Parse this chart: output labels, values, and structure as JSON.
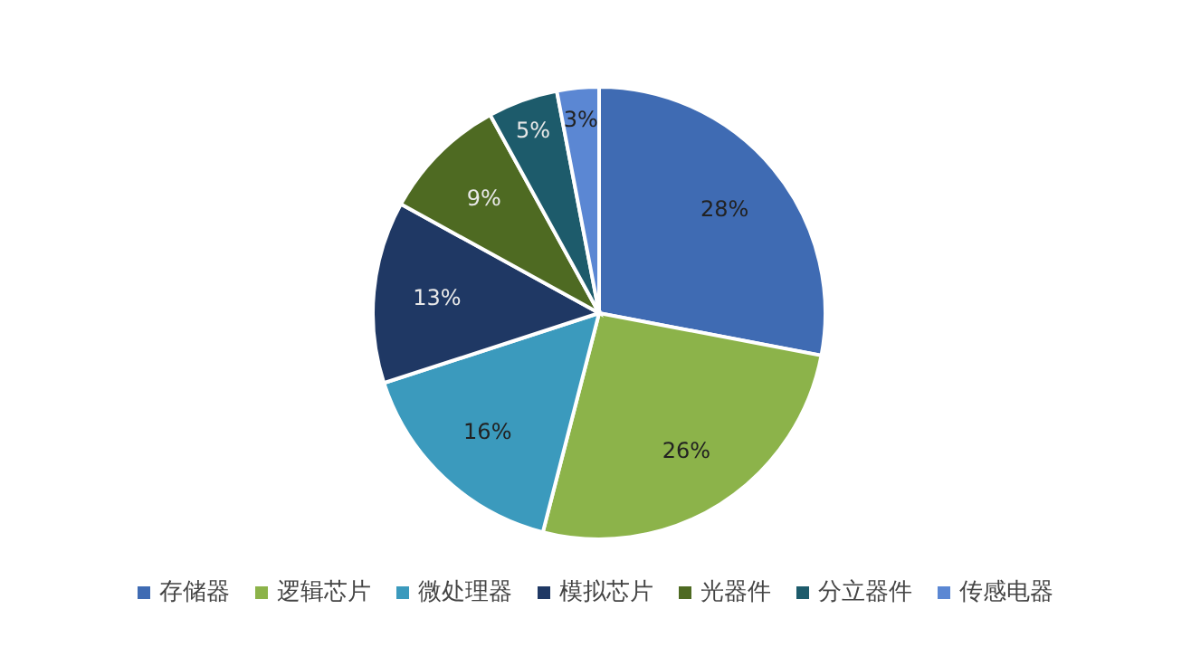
{
  "chart_data": {
    "type": "pie",
    "categories": [
      "存储器",
      "逻辑芯片",
      "微处理器",
      "模拟芯片",
      "光器件",
      "分立器件",
      "传感电器"
    ],
    "values": [
      28,
      26,
      16,
      13,
      9,
      5,
      3
    ],
    "colors": [
      "#3f6bb3",
      "#8cb34a",
      "#3b9abd",
      "#1f3864",
      "#4e6a22",
      "#1d5b6b",
      "#5b87d3"
    ],
    "value_labels": [
      "28%",
      "26%",
      "16%",
      "13%",
      "9%",
      "5%",
      "3%"
    ],
    "legend": "bottom"
  }
}
